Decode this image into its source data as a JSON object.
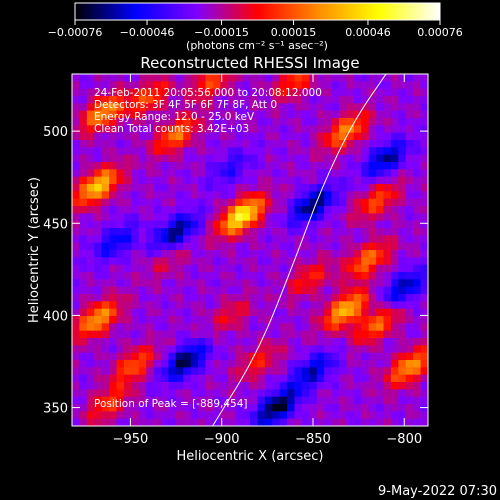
{
  "chart_data": {
    "type": "heatmap",
    "title": "Reconstructed RHESSI Image",
    "xlabel": "Heliocentric X (arcsec)",
    "ylabel": "Heliocentric Y (arcsec)",
    "xlim": [
      -982,
      -787
    ],
    "ylim": [
      340,
      531
    ],
    "x_ticks": [
      -950,
      -900,
      -850,
      -800
    ],
    "x_tick_labels": [
      "−950",
      "−900",
      "−850",
      "−800"
    ],
    "y_ticks": [
      350,
      400,
      450,
      500
    ],
    "y_tick_labels": [
      "350",
      "400",
      "450",
      "500"
    ],
    "colorbar": {
      "range": [
        -0.00076,
        0.00076
      ],
      "tick_values": [
        -0.00076,
        -0.00046,
        -0.00015,
        0.00015,
        0.00046,
        0.00076
      ],
      "tick_labels": [
        "−0.00076",
        "−0.00046",
        "−0.00015",
        "0.00015",
        "0.00046",
        "0.00076"
      ],
      "unit_label": "(photons cm⁻² s⁻¹ asec⁻²)",
      "colors": [
        "#000000",
        "#0000ff",
        "#7f00ff",
        "#ff0000",
        "#ff8c00",
        "#ffff00",
        "#ffffff"
      ]
    },
    "info_lines": [
      "24-Feb-2011 20:05:56.000 to 20:08:12.000",
      "Detectors: 3F 4F 5F 6F 7F 8F, Att 0",
      "Energy Range: 12.0 - 25.0 keV",
      "Clean      Total counts: 3.42E+03"
    ],
    "peak_label": "Position of Peak = [-889,454]",
    "peak": [
      -889,
      454
    ],
    "sources": [
      {
        "x": -889,
        "y": 454,
        "v": 0.00076
      },
      {
        "x": -968,
        "y": 470,
        "v": 0.00062
      },
      {
        "x": -965,
        "y": 510,
        "v": 0.0005
      },
      {
        "x": -925,
        "y": 498,
        "v": 0.00042
      },
      {
        "x": -940,
        "y": 518,
        "v": 0.00034
      },
      {
        "x": -832,
        "y": 500,
        "v": 0.00046
      },
      {
        "x": -905,
        "y": 527,
        "v": 0.00032
      },
      {
        "x": -860,
        "y": 527,
        "v": 0.0003
      },
      {
        "x": -820,
        "y": 430,
        "v": 0.00042
      },
      {
        "x": -815,
        "y": 462,
        "v": 0.00034
      },
      {
        "x": -832,
        "y": 403,
        "v": 0.00058
      },
      {
        "x": -815,
        "y": 395,
        "v": 0.0004
      },
      {
        "x": -797,
        "y": 372,
        "v": 0.0005
      },
      {
        "x": -852,
        "y": 420,
        "v": 0.00026
      },
      {
        "x": -968,
        "y": 398,
        "v": 0.00052
      },
      {
        "x": -948,
        "y": 373,
        "v": 0.00036
      },
      {
        "x": -962,
        "y": 352,
        "v": 0.0003
      },
      {
        "x": -880,
        "y": 375,
        "v": 0.00024
      },
      {
        "x": -895,
        "y": 400,
        "v": 0.0002
      },
      {
        "x": -930,
        "y": 430,
        "v": 0.00016
      }
    ],
    "negatives": [
      {
        "x": -925,
        "y": 445,
        "v": -0.00044
      },
      {
        "x": -920,
        "y": 375,
        "v": -0.00048
      },
      {
        "x": -850,
        "y": 460,
        "v": -0.00046
      },
      {
        "x": -810,
        "y": 485,
        "v": -0.0004
      },
      {
        "x": -870,
        "y": 350,
        "v": -0.00052
      },
      {
        "x": -800,
        "y": 415,
        "v": -0.00038
      },
      {
        "x": -958,
        "y": 440,
        "v": -0.0003
      },
      {
        "x": -850,
        "y": 370,
        "v": -0.00036
      },
      {
        "x": -895,
        "y": 480,
        "v": -0.0002
      }
    ],
    "limb_curve": [
      [
        -905,
        340
      ],
      [
        -880,
        380
      ],
      [
        -860,
        430
      ],
      [
        -845,
        470
      ],
      [
        -828,
        505
      ],
      [
        -810,
        531
      ]
    ]
  },
  "footer": {
    "timestamp": "9-May-2022 07:30"
  }
}
